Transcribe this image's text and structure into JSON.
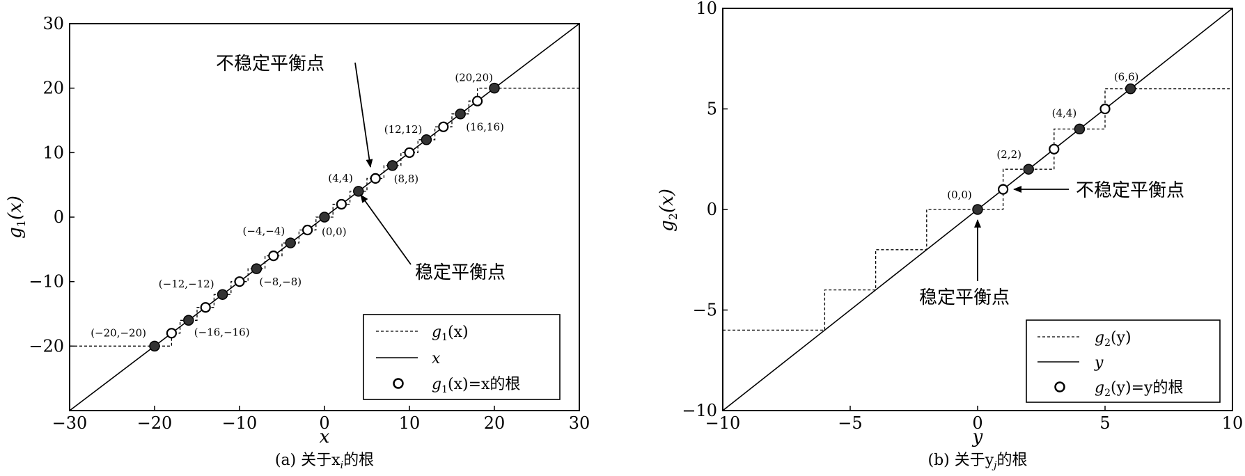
{
  "chart_data": [
    {
      "type": "line",
      "panel": "a",
      "caption": "(a) 关于x",
      "caption_sub": "i",
      "caption_tail": "的根",
      "xlabel": "x",
      "ylabel_main": "g",
      "ylabel_sub": "1",
      "ylabel_tail": "(x)",
      "xlim": [
        -30,
        30
      ],
      "ylim": [
        -30,
        30
      ],
      "xticks": [
        -30,
        -20,
        -10,
        0,
        10,
        20,
        30
      ],
      "yticks": [
        -20,
        -10,
        0,
        10,
        20,
        30
      ],
      "xtick_labels": [
        "−30",
        "−20",
        "−10",
        "0",
        "10",
        "20",
        "30"
      ],
      "ytick_labels": [
        "−20",
        "−10",
        "0",
        "10",
        "20",
        "30"
      ],
      "series": [
        {
          "name": "g1(x)",
          "style": "dashed-step",
          "points": [
            [
              -30,
              -20
            ],
            [
              -18,
              -20
            ],
            [
              -18,
              -18
            ],
            [
              -17,
              -18
            ],
            [
              -17,
              -16
            ],
            [
              -15,
              -16
            ],
            [
              -15,
              -14
            ],
            [
              -13,
              -14
            ],
            [
              -13,
              -12
            ],
            [
              -11,
              -12
            ],
            [
              -11,
              -10
            ],
            [
              -9,
              -10
            ],
            [
              -9,
              -8
            ],
            [
              -7,
              -8
            ],
            [
              -7,
              -6
            ],
            [
              -5,
              -6
            ],
            [
              -5,
              -4
            ],
            [
              -3,
              -4
            ],
            [
              -3,
              -2
            ],
            [
              -1,
              -2
            ],
            [
              -1,
              0
            ],
            [
              1,
              0
            ],
            [
              1,
              2
            ],
            [
              3,
              2
            ],
            [
              3,
              4
            ],
            [
              5,
              4
            ],
            [
              5,
              6
            ],
            [
              7,
              6
            ],
            [
              7,
              8
            ],
            [
              9,
              8
            ],
            [
              9,
              10
            ],
            [
              11,
              10
            ],
            [
              11,
              12
            ],
            [
              13,
              12
            ],
            [
              13,
              14
            ],
            [
              15,
              14
            ],
            [
              15,
              16
            ],
            [
              17,
              16
            ],
            [
              17,
              18
            ],
            [
              18,
              18
            ],
            [
              18,
              20
            ],
            [
              30,
              20
            ]
          ]
        },
        {
          "name": "x",
          "style": "solid",
          "points": [
            [
              -30,
              -30
            ],
            [
              30,
              30
            ]
          ]
        }
      ],
      "roots": {
        "stable": [
          -20,
          -16,
          -12,
          -8,
          -4,
          0,
          4,
          8,
          12,
          16,
          20
        ],
        "unstable": [
          -18,
          -14,
          -10,
          -6,
          -2,
          2,
          6,
          10,
          14,
          18
        ]
      },
      "annotations": [
        {
          "text": "(20,20)",
          "x": 20,
          "y": 20
        },
        {
          "text": "(12,12)",
          "x": 12,
          "y": 12
        },
        {
          "text": "(16,16)",
          "x": 16,
          "y": 16
        },
        {
          "text": "(4,4)",
          "x": 4,
          "y": 4
        },
        {
          "text": "(8,8)",
          "x": 8,
          "y": 8
        },
        {
          "text": "(−4,−4)",
          "x": -4,
          "y": -4
        },
        {
          "text": "(0,0)",
          "x": 0,
          "y": 0
        },
        {
          "text": "(−12,−12)",
          "x": -12,
          "y": -12
        },
        {
          "text": "(−8,−8)",
          "x": -8,
          "y": -8
        },
        {
          "text": "(−20,−20)",
          "x": -20,
          "y": -20
        },
        {
          "text": "(−16,−16)",
          "x": -16,
          "y": -16
        }
      ],
      "callouts": {
        "unstable": "不稳定平衡点",
        "stable": "稳定平衡点"
      },
      "legend": {
        "placement": "bottom-right",
        "entries": [
          {
            "main": "g",
            "sub": "1",
            "tail": "(x)"
          },
          {
            "main": "x",
            "sub": "",
            "tail": ""
          },
          {
            "main": "g",
            "sub": "1",
            "tail": "(x)=x的根"
          }
        ]
      }
    },
    {
      "type": "line",
      "panel": "b",
      "caption": "(b) 关于y",
      "caption_sub": "j",
      "caption_tail": "的根",
      "xlabel": "y",
      "ylabel_main": "g",
      "ylabel_sub": "2",
      "ylabel_tail": "(x)",
      "xlim": [
        -10,
        10
      ],
      "ylim": [
        -10,
        10
      ],
      "xticks": [
        -10,
        -5,
        0,
        5,
        10
      ],
      "yticks": [
        -10,
        -5,
        0,
        5,
        10
      ],
      "xtick_labels": [
        "−10",
        "−5",
        "0",
        "5",
        "10"
      ],
      "ytick_labels": [
        "−10",
        "−5",
        "0",
        "5",
        "10"
      ],
      "series": [
        {
          "name": "g2(y)",
          "style": "dashed-step",
          "points": [
            [
              -10,
              -6
            ],
            [
              -6,
              -6
            ],
            [
              -6,
              -4
            ],
            [
              -4,
              -4
            ],
            [
              -4,
              -2
            ],
            [
              -2,
              -2
            ],
            [
              -2,
              0
            ],
            [
              1,
              0
            ],
            [
              1,
              2
            ],
            [
              3,
              2
            ],
            [
              3,
              4
            ],
            [
              5,
              4
            ],
            [
              5,
              6
            ],
            [
              10,
              6
            ]
          ]
        },
        {
          "name": "y",
          "style": "solid",
          "points": [
            [
              -10,
              -10
            ],
            [
              10,
              10
            ]
          ]
        }
      ],
      "roots": {
        "stable": [
          0,
          2,
          4,
          6
        ],
        "unstable": [
          1,
          3,
          5
        ]
      },
      "annotations": [
        {
          "text": "(6,6)",
          "x": 6,
          "y": 6
        },
        {
          "text": "(4,4)",
          "x": 4,
          "y": 4
        },
        {
          "text": "(2,2)",
          "x": 2,
          "y": 2
        },
        {
          "text": "(0,0)",
          "x": 0,
          "y": 0
        }
      ],
      "callouts": {
        "unstable": "不稳定平衡点",
        "stable": "稳定平衡点"
      },
      "legend": {
        "placement": "bottom-right",
        "entries": [
          {
            "main": "g",
            "sub": "2",
            "tail": "(y)"
          },
          {
            "main": "y",
            "sub": "",
            "tail": ""
          },
          {
            "main": "g",
            "sub": "2",
            "tail": "(y)=y的根"
          }
        ]
      }
    }
  ]
}
